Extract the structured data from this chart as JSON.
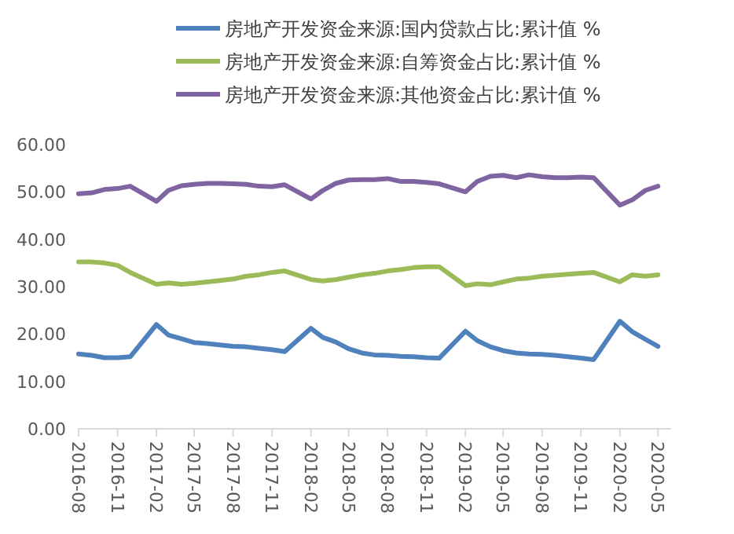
{
  "chart_data": {
    "type": "line",
    "legend": "top",
    "grid": false,
    "marker": "none",
    "line_style": "solid",
    "x": [
      "2016-08",
      "2016-09",
      "2016-10",
      "2016-11",
      "2016-12",
      "2017-02",
      "2017-03",
      "2017-04",
      "2017-05",
      "2017-06",
      "2017-07",
      "2017-08",
      "2017-09",
      "2017-10",
      "2017-11",
      "2017-12",
      "2018-02",
      "2018-03",
      "2018-04",
      "2018-05",
      "2018-06",
      "2018-07",
      "2018-08",
      "2018-09",
      "2018-10",
      "2018-11",
      "2018-12",
      "2019-02",
      "2019-03",
      "2019-04",
      "2019-05",
      "2019-06",
      "2019-07",
      "2019-08",
      "2019-09",
      "2019-10",
      "2019-11",
      "2019-12",
      "2020-02",
      "2020-03",
      "2020-04",
      "2020-05"
    ],
    "series": [
      {
        "name": "房地产开发资金来源:国内贷款占比:累计值 %",
        "color": "#4f81bd",
        "values": [
          15.8,
          15.5,
          15.0,
          15.0,
          15.2,
          22.0,
          19.8,
          19.0,
          18.2,
          18.0,
          17.7,
          17.4,
          17.3,
          17.0,
          16.7,
          16.3,
          21.2,
          19.3,
          18.3,
          16.9,
          16.0,
          15.6,
          15.5,
          15.3,
          15.2,
          15.0,
          14.9,
          20.6,
          18.6,
          17.3,
          16.5,
          16.0,
          15.8,
          15.7,
          15.5,
          15.2,
          14.9,
          14.6,
          22.7,
          20.5,
          18.9,
          17.4
        ]
      },
      {
        "name": "房地产开发资金来源:自筹资金占比:累计值 %",
        "color": "#9bbb59",
        "values": [
          35.2,
          35.2,
          35.0,
          34.5,
          33.0,
          30.5,
          30.8,
          30.5,
          30.7,
          31.0,
          31.3,
          31.6,
          32.2,
          32.5,
          33.0,
          33.3,
          31.5,
          31.2,
          31.5,
          32.0,
          32.5,
          32.8,
          33.3,
          33.6,
          34.0,
          34.2,
          34.2,
          30.2,
          30.6,
          30.4,
          31.0,
          31.6,
          31.8,
          32.2,
          32.4,
          32.6,
          32.8,
          33.0,
          31.0,
          32.5,
          32.2,
          32.5
        ]
      },
      {
        "name": "房地产开发资金来源:其他资金占比:累计值 %",
        "color": "#8064a2",
        "values": [
          49.6,
          49.8,
          50.5,
          50.7,
          51.2,
          48.0,
          50.3,
          51.3,
          51.6,
          51.8,
          51.8,
          51.7,
          51.6,
          51.2,
          51.1,
          51.5,
          48.5,
          50.3,
          51.8,
          52.5,
          52.6,
          52.6,
          52.8,
          52.2,
          52.2,
          52.0,
          51.7,
          50.0,
          52.2,
          53.3,
          53.5,
          53.0,
          53.6,
          53.2,
          53.0,
          53.0,
          53.1,
          53.0,
          47.2,
          48.3,
          50.3,
          51.2
        ]
      }
    ],
    "xlim": [
      "2016-08",
      "2020-06"
    ],
    "xticks": [
      "2016-08",
      "2016-11",
      "2017-02",
      "2017-05",
      "2017-08",
      "2017-11",
      "2018-02",
      "2018-05",
      "2018-08",
      "2018-11",
      "2019-02",
      "2019-05",
      "2019-08",
      "2019-11",
      "2020-02",
      "2020-05"
    ],
    "ylim": [
      0,
      60
    ],
    "yticks": [
      {
        "value": 0,
        "label": "0.00"
      },
      {
        "value": 10,
        "label": "10.00"
      },
      {
        "value": 20,
        "label": "20.00"
      },
      {
        "value": 30,
        "label": "30.00"
      },
      {
        "value": 40,
        "label": "40.00"
      },
      {
        "value": 50,
        "label": "50.00"
      },
      {
        "value": 60,
        "label": "60.00"
      }
    ]
  }
}
